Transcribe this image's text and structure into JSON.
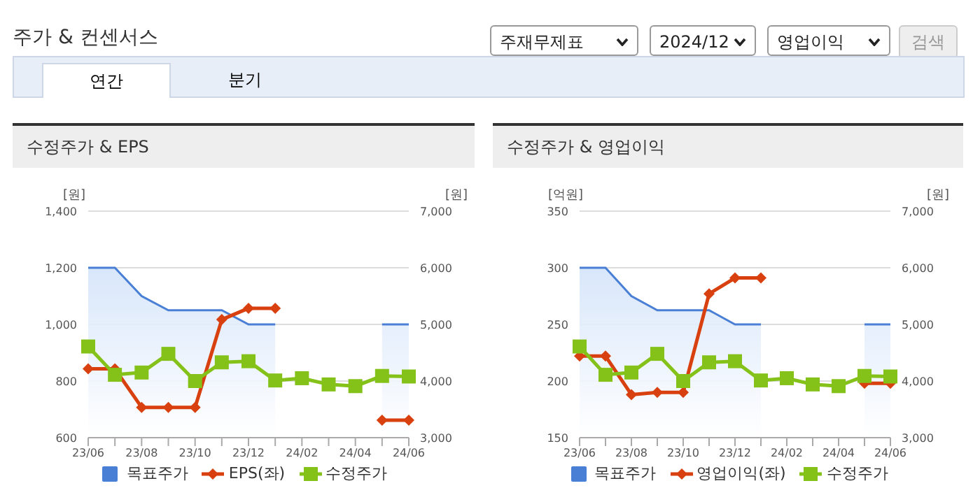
{
  "chart_data": [
    {
      "type": "line",
      "title": "수정주가 & EPS",
      "annotations": [
        "주가 & 컨센서스",
        "주재무제표",
        "2024/12",
        "영업이익",
        "검색",
        "연간",
        "분기"
      ],
      "ylabel": "[원]",
      "y2label": "[원]",
      "categories": [
        "23/06",
        null,
        "23/08",
        null,
        "23/10",
        null,
        "23/12",
        null,
        "24/02",
        null,
        "24/04",
        null,
        "24/06"
      ],
      "ylim": [
        600,
        1400
      ],
      "yticks": [
        600,
        800,
        {
          "value": 1000,
          "label": "1,000"
        },
        {
          "value": 1200,
          "label": "1,200"
        },
        {
          "value": 1400,
          "label": "1,400"
        }
      ],
      "y2lim": [
        3000,
        7000
      ],
      "y2ticks": [
        {
          "value": 3000,
          "label": "3,000"
        },
        {
          "value": 4000,
          "label": "4,000"
        },
        {
          "value": 5000,
          "label": "5,000"
        },
        {
          "value": 6000,
          "label": "6,000"
        },
        {
          "value": 7000,
          "label": "7,000"
        }
      ],
      "grid": "y",
      "legend": "bottom",
      "series": [
        {
          "name": "목표주가",
          "type": "area",
          "color": "#4a7fd6",
          "axis": "y2",
          "values": [
            6000,
            6000,
            5500,
            5250,
            5250,
            5250,
            5000,
            5000,
            null,
            null,
            null,
            5000,
            5000
          ]
        },
        {
          "name": "EPS(좌)",
          "color": "#d9400f",
          "marker": "diamond",
          "values": [
            843,
            843,
            707,
            707,
            707,
            1017,
            1057,
            1057,
            null,
            null,
            null,
            662,
            662
          ]
        },
        {
          "name": "수정주가",
          "color": "#84c21a",
          "marker": "square",
          "axis": "y2",
          "values": [
            4610,
            4110,
            4150,
            4480,
            4000,
            4330,
            4350,
            4010,
            4050,
            3940,
            3910,
            4090,
            4080
          ]
        }
      ]
    },
    {
      "type": "line",
      "title": "수정주가 & 영업이익",
      "ylabel": "[억원]",
      "y2label": "[원]",
      "categories": [
        "23/06",
        null,
        "23/08",
        null,
        "23/10",
        null,
        "23/12",
        null,
        "24/02",
        null,
        "24/04",
        null,
        "24/06"
      ],
      "ylim": [
        150,
        350
      ],
      "yticks": [
        150,
        200,
        250,
        300,
        350
      ],
      "y2lim": [
        3000,
        7000
      ],
      "y2ticks": [
        {
          "value": 3000,
          "label": "3,000"
        },
        {
          "value": 4000,
          "label": "4,000"
        },
        {
          "value": 5000,
          "label": "5,000"
        },
        {
          "value": 6000,
          "label": "6,000"
        },
        {
          "value": 7000,
          "label": "7,000"
        }
      ],
      "grid": "y",
      "legend": "bottom",
      "series": [
        {
          "name": "목표주가",
          "type": "area",
          "color": "#4a7fd6",
          "axis": "y2",
          "values": [
            6000,
            6000,
            5500,
            5250,
            5250,
            5250,
            5000,
            5000,
            null,
            null,
            null,
            5000,
            5000
          ]
        },
        {
          "name": "영업이익(좌)",
          "color": "#d9400f",
          "marker": "diamond",
          "values": [
            222,
            222,
            188,
            190,
            190,
            277,
            291,
            291,
            null,
            null,
            null,
            198,
            198
          ]
        },
        {
          "name": "수정주가",
          "color": "#84c21a",
          "marker": "square",
          "axis": "y2",
          "values": [
            4610,
            4110,
            4150,
            4480,
            4000,
            4330,
            4350,
            4010,
            4050,
            3940,
            3910,
            4090,
            4080
          ]
        }
      ]
    }
  ]
}
